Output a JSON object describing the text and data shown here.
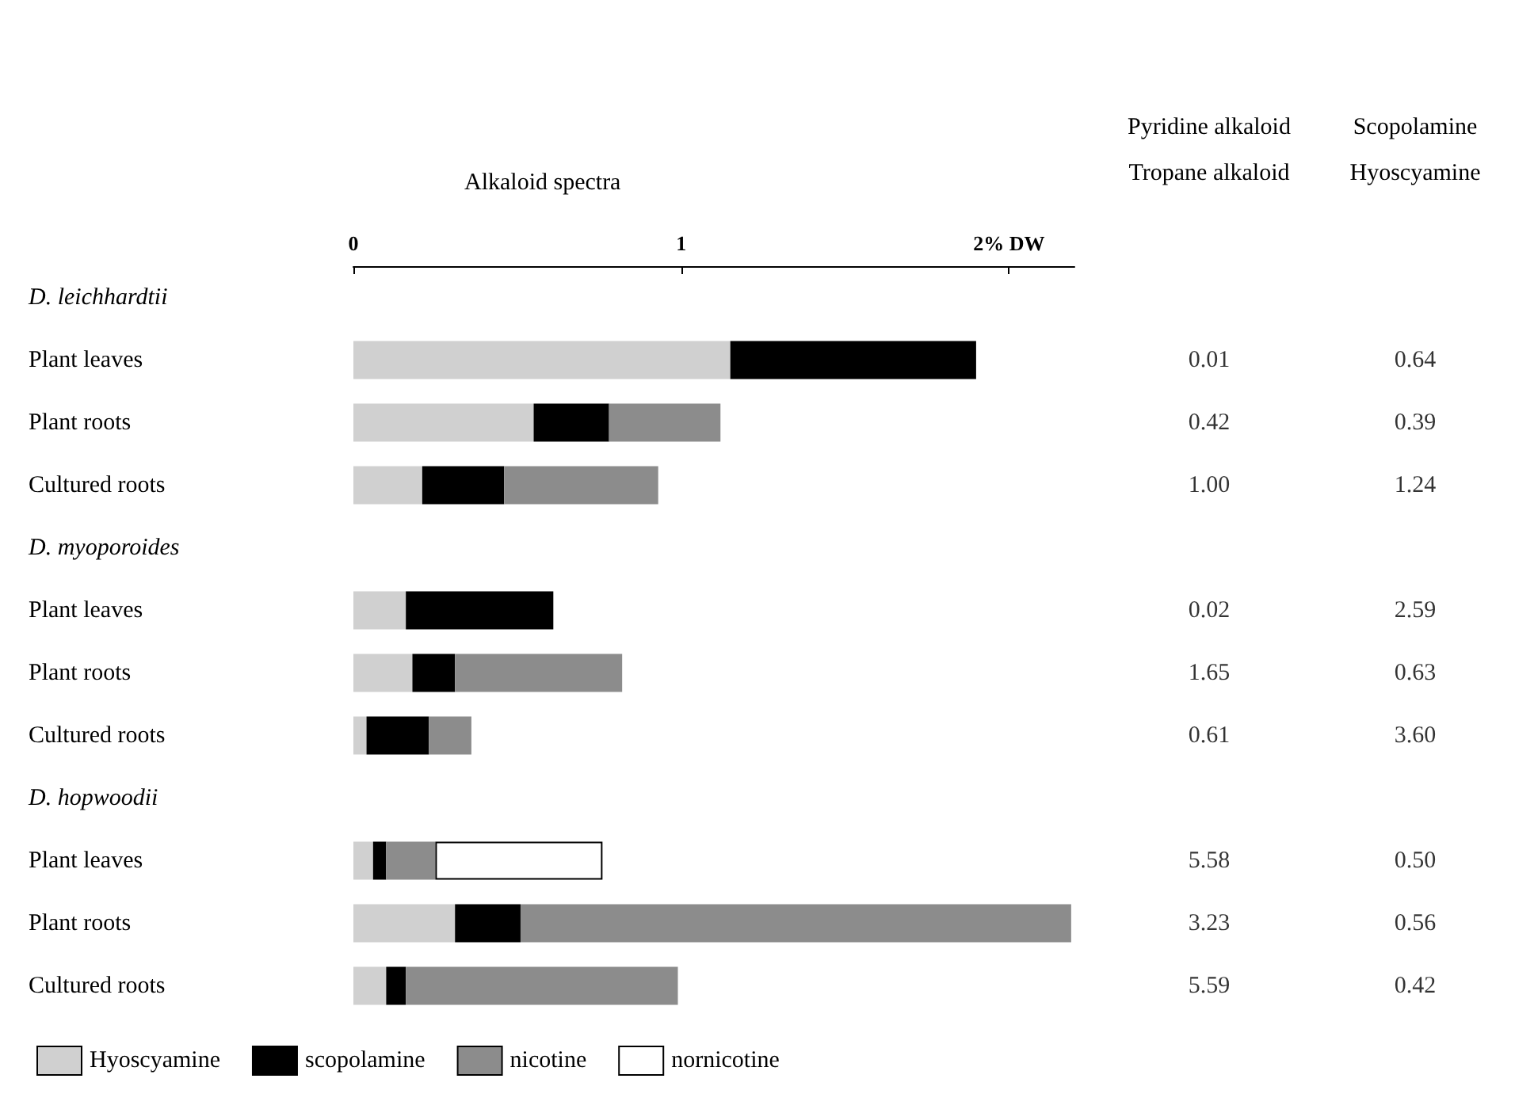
{
  "chart_data": [
    {
      "type": "bar",
      "orientation": "horizontal",
      "stacked": true,
      "title": "Alkaloid spectra",
      "categories": [
        "D. leichhardtii",
        "Plant leaves",
        "Plant roots",
        "Cultured roots",
        "D. myoporoides",
        "Plant leaves",
        "Plant roots",
        "Cultured roots",
        "D. hopwoodii",
        "Plant leaves",
        "Plant roots",
        "Cultured roots"
      ],
      "series": [
        {
          "name": "Hyoscyamine",
          "color": "#d0d0d0",
          "values": [
            null,
            1.15,
            0.55,
            0.21,
            null,
            0.16,
            0.18,
            0.04,
            null,
            0.06,
            0.31,
            0.1
          ]
        },
        {
          "name": "scopolamine",
          "color": "#000000",
          "values": [
            null,
            0.75,
            0.23,
            0.25,
            null,
            0.45,
            0.13,
            0.19,
            null,
            0.04,
            0.2,
            0.06
          ]
        },
        {
          "name": "nicotine",
          "color": "#8c8c8c",
          "values": [
            null,
            null,
            0.34,
            0.47,
            null,
            null,
            0.51,
            0.13,
            null,
            0.15,
            1.68,
            0.83
          ]
        },
        {
          "name": "nornicotine",
          "color": "#ffffff",
          "values": [
            null,
            null,
            null,
            null,
            null,
            null,
            null,
            null,
            null,
            0.51,
            null,
            null
          ]
        }
      ],
      "xlim": [
        0,
        2.2
      ],
      "xticks": [
        0,
        1,
        {
          "value": 2,
          "label": "2% DW"
        }
      ],
      "grid": false,
      "legend": "bottom"
    },
    {
      "type": "other",
      "title": "Pyridine alkaloid",
      "subtitle": "Tropane alkaloid",
      "categories": [
        null,
        null,
        null,
        null,
        null,
        null,
        null,
        null,
        null,
        null,
        null,
        null
      ],
      "value_labels": [
        null,
        "0.01",
        "0.42",
        "1.00",
        null,
        "0.02",
        "1.65",
        "0.61",
        null,
        "5.58",
        "3.23",
        "5.59"
      ]
    },
    {
      "type": "other",
      "title": "Scopolamine",
      "subtitle": "Hyoscyamine",
      "categories": [
        null,
        null,
        null,
        null,
        null,
        null,
        null,
        null,
        null,
        null,
        null,
        null
      ],
      "value_labels": [
        null,
        "0.64",
        "0.39",
        "1.24",
        null,
        "2.59",
        "0.63",
        "3.60",
        null,
        "0.50",
        "0.56",
        "0.42"
      ]
    }
  ]
}
